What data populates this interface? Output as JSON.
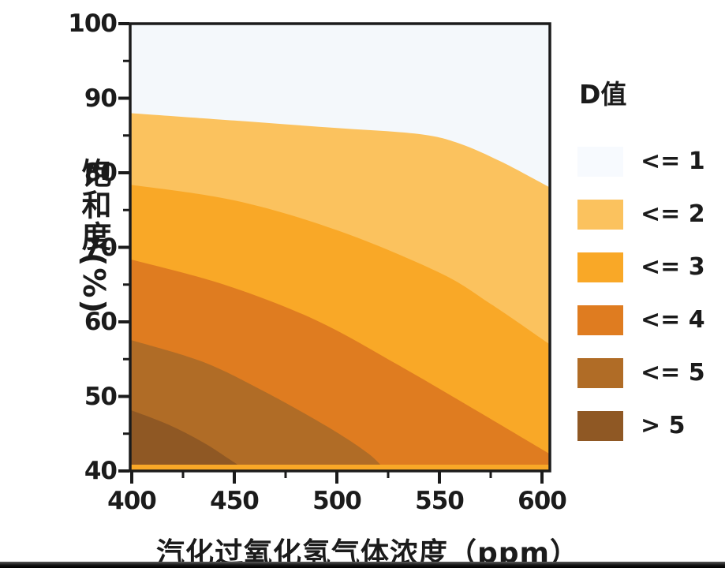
{
  "chart": {
    "x_axis": {
      "title": "汽化过氧化氢气体浓度（ppm）",
      "major_ticks": [
        "400",
        "450",
        "500",
        "550",
        "600"
      ],
      "minor_ticks": [
        425,
        475,
        525,
        575
      ],
      "range": [
        400,
        600
      ]
    },
    "y_axis": {
      "title": "饱和度(%)",
      "major_ticks": [
        "100",
        "90",
        "80",
        "70",
        "60",
        "50",
        "40"
      ],
      "minor_ticks": [
        95,
        85,
        75,
        65,
        55,
        45
      ],
      "range": [
        40,
        100
      ]
    }
  },
  "legend": {
    "title": "D值",
    "items": [
      {
        "label": "<= 1",
        "color": "#F7FAFE"
      },
      {
        "label": "<= 2",
        "color": "#FBC25E"
      },
      {
        "label": "<= 3",
        "color": "#F9A827"
      },
      {
        "label": "<= 4",
        "color": "#DF7C20"
      },
      {
        "label": "<= 5",
        "color": "#B06C26"
      },
      {
        "label": "> 5",
        "color": "#8F5824"
      }
    ]
  },
  "chart_data": {
    "type": "contour-filled",
    "title": "",
    "xlabel": "汽化过氧化氢气体浓度（ppm）",
    "ylabel": "饱和度(%)",
    "xlim": [
      400,
      600
    ],
    "ylim": [
      40,
      100
    ],
    "legend_title": "D值",
    "legend_position": "right",
    "grid": false,
    "bands": [
      {
        "d": "<= 1",
        "color": "#F4F8FB"
      },
      {
        "d": "<= 2",
        "color": "#FBC25E",
        "upper_boundary": [
          [
            400,
            88.0
          ],
          [
            450,
            87.0
          ],
          [
            500,
            86.0
          ],
          [
            540,
            85.2
          ],
          [
            560,
            83.9
          ],
          [
            580,
            81.5
          ],
          [
            600,
            78.6
          ]
        ]
      },
      {
        "d": "<= 3",
        "color": "#F9A827",
        "upper_boundary": [
          [
            400,
            78.4
          ],
          [
            450,
            76.3
          ],
          [
            500,
            72.3
          ],
          [
            550,
            66.6
          ],
          [
            575,
            62.4
          ],
          [
            600,
            57.7
          ]
        ]
      },
      {
        "d": "<= 4",
        "color": "#DF7C20",
        "upper_boundary": [
          [
            400,
            68.4
          ],
          [
            445,
            65.0
          ],
          [
            490,
            60.2
          ],
          [
            530,
            54.2
          ],
          [
            565,
            48.6
          ],
          [
            600,
            42.9
          ]
        ]
      },
      {
        "d": "<= 5",
        "color": "#B06C26",
        "upper_boundary": [
          [
            400,
            57.6
          ],
          [
            435,
            54.6
          ],
          [
            465,
            50.6
          ],
          [
            495,
            46.0
          ],
          [
            515,
            42.4
          ],
          [
            524,
            40.0
          ]
        ]
      },
      {
        "d": "> 5",
        "color": "#8F5824",
        "upper_boundary": [
          [
            400,
            48.2
          ],
          [
            418,
            46.2
          ],
          [
            435,
            43.8
          ],
          [
            448,
            41.5
          ],
          [
            456,
            40.0
          ]
        ]
      }
    ],
    "baseline_strip_color": "#F9A827"
  },
  "colors": {
    "axis": "#1b1b1b",
    "text": "#1b1b1b",
    "background": "#FFFFFF",
    "letterbox": "#1c1c1c"
  }
}
